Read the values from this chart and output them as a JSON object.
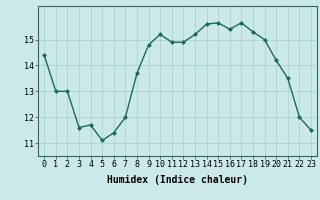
{
  "x": [
    0,
    1,
    2,
    3,
    4,
    5,
    6,
    7,
    8,
    9,
    10,
    11,
    12,
    13,
    14,
    15,
    16,
    17,
    18,
    19,
    20,
    21,
    22,
    23
  ],
  "y": [
    14.4,
    13.0,
    13.0,
    11.6,
    11.7,
    11.1,
    11.4,
    12.0,
    13.7,
    14.8,
    15.2,
    14.9,
    14.9,
    15.2,
    15.6,
    15.65,
    15.4,
    15.65,
    15.3,
    15.0,
    14.2,
    13.5,
    12.0,
    11.5
  ],
  "line_color": "#1a6b5a",
  "marker": "D",
  "marker_size": 2,
  "bg_color": "#cce9e9",
  "grid_color": "#aad4d4",
  "xlabel": "Humidex (Indice chaleur)",
  "xlabel_fontsize": 7,
  "tick_fontsize": 6,
  "ylim": [
    10.5,
    16.3
  ],
  "yticks": [
    11,
    12,
    13,
    14,
    15
  ],
  "linewidth": 1.0
}
